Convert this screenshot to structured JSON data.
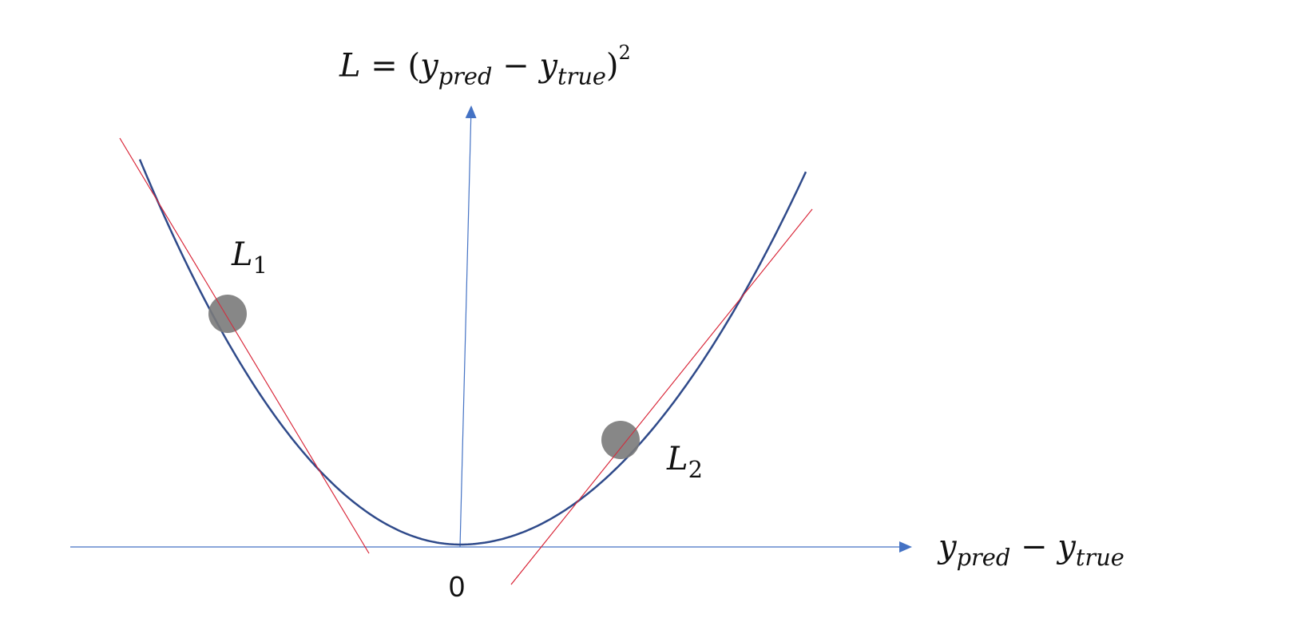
{
  "title_formula": {
    "lhs": "L",
    "eq": "=",
    "open": "(",
    "y1": "y",
    "sub1": "pred",
    "minus": "−",
    "y2": "y",
    "sub2": "true",
    "close": ")",
    "power": "2"
  },
  "x_axis_label": {
    "y1": "y",
    "sub1": "pred",
    "minus": "−",
    "y2": "y",
    "sub2": "true"
  },
  "origin_label": "0",
  "points": [
    {
      "label": "L",
      "sub": "1"
    },
    {
      "label": "L",
      "sub": "2"
    }
  ],
  "colors": {
    "axis": "#4472c4",
    "curve": "#2f4a8a",
    "tangent": "#d9283a",
    "point": "#7a7a7a"
  }
}
